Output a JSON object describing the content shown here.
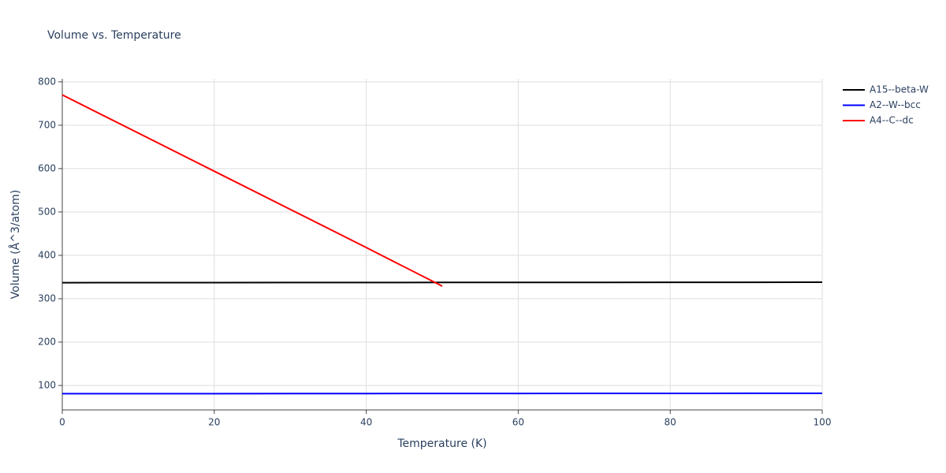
{
  "chart_data": {
    "type": "line",
    "title": "Volume vs. Temperature",
    "x_label": "Temperature (K)",
    "y_label": "Volume (Å^3/atom)",
    "x": [
      0,
      10,
      20,
      30,
      40,
      50,
      60,
      70,
      80,
      90,
      100
    ],
    "series": [
      {
        "name": "A15--beta-W",
        "color": "#000000",
        "values": [
          337,
          337.1,
          337.2,
          337.3,
          337.4,
          337.5,
          337.6,
          337.7,
          337.8,
          337.9,
          338
        ]
      },
      {
        "name": "A2--W--bcc",
        "color": "#0000ff",
        "values": [
          81,
          81.1,
          81.2,
          81.3,
          81.4,
          81.5,
          81.6,
          81.7,
          81.8,
          81.9,
          82
        ]
      },
      {
        "name": "A4--C--dc",
        "color": "#ff0000",
        "values": [
          770,
          682,
          594,
          506,
          418,
          329,
          null,
          null,
          null,
          null,
          null
        ]
      }
    ],
    "xlim": [
      0,
      100
    ],
    "xticks": [
      0,
      20,
      40,
      60,
      80,
      100
    ],
    "ylim": [
      43.6,
      807
    ],
    "yticks": [
      100,
      200,
      300,
      400,
      500,
      600,
      700,
      800
    ],
    "grid": true,
    "legend": "right"
  }
}
